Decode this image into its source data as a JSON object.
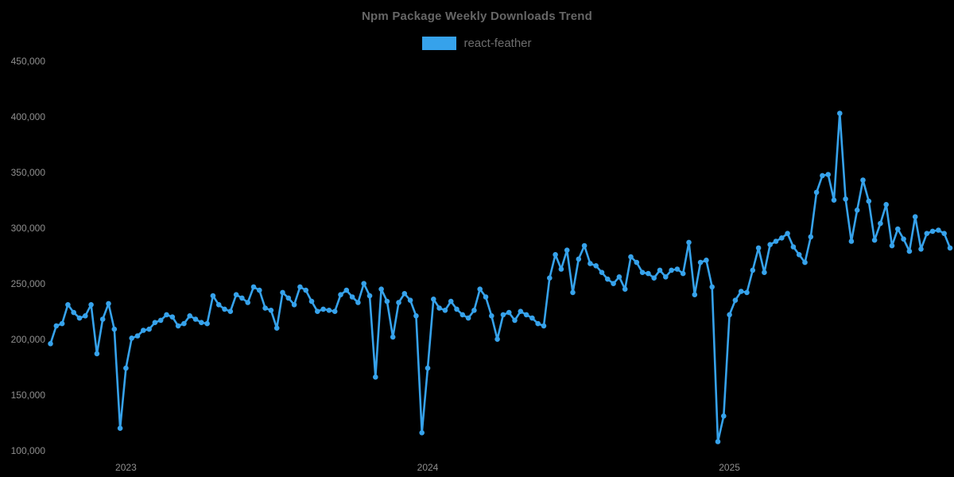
{
  "title": "Npm Package Weekly Downloads Trend",
  "legend": {
    "items": [
      {
        "label": "react-feather",
        "color": "#36A2EB"
      }
    ]
  },
  "colors": {
    "background": "#000000",
    "line": "#36A2EB",
    "point": "#36A2EB",
    "title_text": "#666666",
    "legend_text": "#6e6e6e",
    "tick_text": "#8f8f8f"
  },
  "chart_data": {
    "type": "line",
    "title": "Npm Package Weekly Downloads Trend",
    "legend_position": "top",
    "grid": false,
    "x_axis": {
      "unit": "week",
      "tick_labels": [
        "2023",
        "2024",
        "2025"
      ],
      "tick_indices": [
        13,
        65,
        117
      ]
    },
    "y_axis": {
      "min": 100000,
      "max": 450000,
      "tick_step": 50000,
      "tick_labels": [
        "100,000",
        "150,000",
        "200,000",
        "250,000",
        "300,000",
        "350,000",
        "400,000",
        "450,000"
      ]
    },
    "series": [
      {
        "name": "react-feather",
        "color": "#36A2EB",
        "values": [
          196000,
          212000,
          214000,
          231000,
          224000,
          219000,
          221000,
          231000,
          187000,
          218000,
          232000,
          209000,
          120000,
          174000,
          201000,
          203000,
          208000,
          209000,
          215000,
          217000,
          222000,
          220000,
          212000,
          214000,
          221000,
          218000,
          215000,
          214000,
          239000,
          231000,
          227000,
          225000,
          240000,
          237000,
          233000,
          247000,
          244000,
          228000,
          226000,
          210000,
          242000,
          237000,
          231000,
          247000,
          244000,
          234000,
          225000,
          227000,
          226000,
          225000,
          240000,
          244000,
          238000,
          233000,
          250000,
          239000,
          166000,
          245000,
          234000,
          202000,
          233000,
          241000,
          235000,
          221000,
          116000,
          174000,
          236000,
          228000,
          226000,
          234000,
          227000,
          222000,
          219000,
          226000,
          245000,
          238000,
          221000,
          200000,
          222000,
          224000,
          217000,
          225000,
          222000,
          219000,
          214000,
          212000,
          255000,
          276000,
          263000,
          280000,
          242000,
          272000,
          284000,
          268000,
          266000,
          260000,
          254000,
          250000,
          256000,
          245000,
          274000,
          269000,
          260000,
          259000,
          255000,
          262000,
          256000,
          262000,
          263000,
          259000,
          287000,
          240000,
          269000,
          271000,
          247000,
          108000,
          131000,
          222000,
          235000,
          243000,
          242000,
          262000,
          282000,
          260000,
          285000,
          288000,
          291000,
          295000,
          283000,
          276000,
          269000,
          292000,
          332000,
          347000,
          348000,
          325000,
          403000,
          326000,
          288000,
          316000,
          343000,
          324000,
          289000,
          304000,
          321000,
          284000,
          299000,
          290000,
          279000,
          310000,
          281000,
          295000,
          297000,
          298000,
          295000,
          282000
        ]
      }
    ]
  }
}
